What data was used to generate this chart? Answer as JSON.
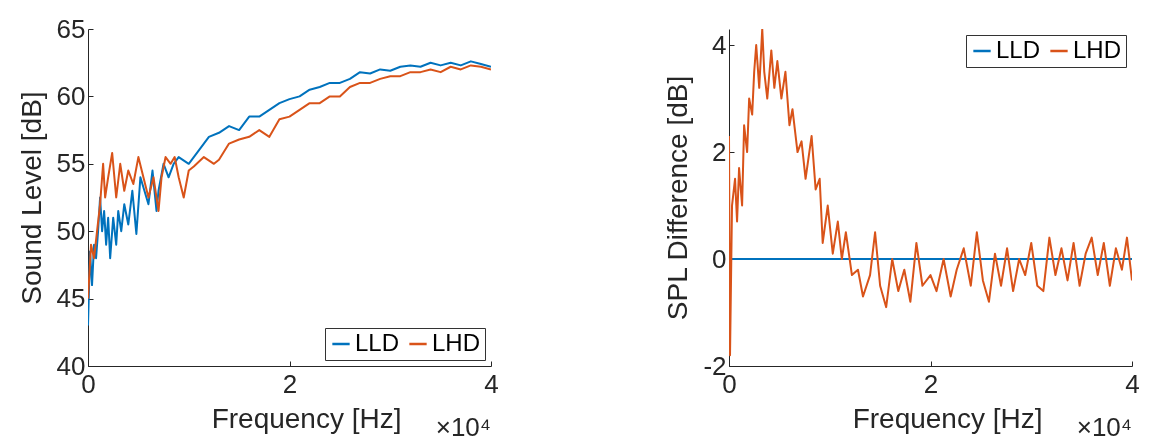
{
  "chart_data": [
    {
      "type": "line",
      "xlabel": "Frequency [Hz]",
      "ylabel": "Sound Level [dB]",
      "xlim": [
        0,
        4
      ],
      "xticks": [
        0,
        2,
        4
      ],
      "ylim": [
        40,
        65
      ],
      "yticks": [
        40,
        45,
        50,
        55,
        60,
        65
      ],
      "grid": false,
      "legend": "bottom right",
      "annotations": [
        "×10⁴"
      ],
      "series": [
        {
          "name": "LLD",
          "color": "#0072bd",
          "x": [
            0,
            0.02,
            0.04,
            0.06,
            0.08,
            0.1,
            0.12,
            0.14,
            0.16,
            0.18,
            0.2,
            0.22,
            0.25,
            0.28,
            0.3,
            0.33,
            0.36,
            0.4,
            0.44,
            0.48,
            0.52,
            0.56,
            0.6,
            0.64,
            0.68,
            0.7,
            0.75,
            0.8,
            0.85,
            0.9,
            1.0,
            1.1,
            1.2,
            1.3,
            1.4,
            1.5,
            1.6,
            1.7,
            1.8,
            1.9,
            2.0,
            2.1,
            2.2,
            2.3,
            2.4,
            2.5,
            2.6,
            2.7,
            2.8,
            2.9,
            3.0,
            3.1,
            3.2,
            3.3,
            3.4,
            3.5,
            3.6,
            3.7,
            3.8,
            3.9,
            4.0
          ],
          "values": [
            43,
            48.5,
            46,
            49,
            48,
            50,
            52.5,
            50,
            51.5,
            49,
            51,
            48,
            51,
            49,
            51.5,
            50,
            52,
            50.5,
            53,
            49.8,
            54,
            53,
            52,
            54.5,
            51.5,
            53,
            55,
            54,
            55,
            55.5,
            55,
            56,
            57,
            57.3,
            57.8,
            57.5,
            58.5,
            58.5,
            59,
            59.5,
            59.8,
            60,
            60.5,
            60.7,
            61,
            61,
            61.3,
            61.8,
            61.7,
            62,
            61.9,
            62.2,
            62.3,
            62.2,
            62.5,
            62.3,
            62.5,
            62.3,
            62.6,
            62.4,
            62.2
          ]
        },
        {
          "name": "LHD",
          "color": "#d95319",
          "x": [
            0,
            0.03,
            0.06,
            0.09,
            0.12,
            0.15,
            0.17,
            0.2,
            0.24,
            0.28,
            0.32,
            0.36,
            0.4,
            0.45,
            0.5,
            0.55,
            0.6,
            0.65,
            0.7,
            0.73,
            0.77,
            0.82,
            0.86,
            0.9,
            0.95,
            1.0,
            1.05,
            1.15,
            1.25,
            1.3,
            1.4,
            1.5,
            1.6,
            1.7,
            1.8,
            1.9,
            2.0,
            2.1,
            2.2,
            2.3,
            2.4,
            2.5,
            2.6,
            2.7,
            2.8,
            2.9,
            3.0,
            3.1,
            3.2,
            3.3,
            3.4,
            3.5,
            3.6,
            3.7,
            3.8,
            3.9,
            4.0
          ],
          "values": [
            45,
            49,
            48,
            50,
            52,
            55,
            52.5,
            54,
            55.8,
            52.5,
            55,
            53,
            54.5,
            53.5,
            55.5,
            54,
            52.5,
            54,
            51.5,
            54,
            55.5,
            55,
            55.5,
            54,
            52.5,
            54.5,
            54.8,
            55.5,
            55,
            55.3,
            56.5,
            56.8,
            57,
            57.5,
            57,
            58.3,
            58.5,
            59,
            59.5,
            59.5,
            60,
            60,
            60.7,
            61,
            61,
            61.3,
            61.5,
            61.5,
            61.8,
            61.8,
            62,
            61.8,
            62.2,
            62,
            62.3,
            62.2,
            62
          ]
        }
      ]
    },
    {
      "type": "line",
      "xlabel": "Frequency [Hz]",
      "ylabel": "SPL Difference [dB]",
      "xlim": [
        0,
        4
      ],
      "xticks": [
        0,
        2,
        4
      ],
      "ylim": [
        -2,
        4.3
      ],
      "yticks": [
        -2,
        0,
        2,
        4
      ],
      "grid": false,
      "legend": "top right",
      "annotations": [
        "×10⁴"
      ],
      "series": [
        {
          "name": "LLD",
          "color": "#0072bd",
          "x": [
            0,
            4
          ],
          "values": [
            0,
            0
          ]
        },
        {
          "name": "LHD",
          "color": "#d95319",
          "x": [
            0,
            0.01,
            0.03,
            0.06,
            0.08,
            0.1,
            0.13,
            0.15,
            0.18,
            0.2,
            0.23,
            0.25,
            0.27,
            0.3,
            0.33,
            0.35,
            0.38,
            0.42,
            0.45,
            0.48,
            0.52,
            0.56,
            0.6,
            0.63,
            0.68,
            0.72,
            0.76,
            0.82,
            0.86,
            0.9,
            0.93,
            0.98,
            1.03,
            1.08,
            1.12,
            1.16,
            1.22,
            1.28,
            1.33,
            1.4,
            1.45,
            1.5,
            1.56,
            1.62,
            1.68,
            1.74,
            1.8,
            1.86,
            1.92,
            2.0,
            2.06,
            2.13,
            2.2,
            2.26,
            2.33,
            2.4,
            2.46,
            2.52,
            2.58,
            2.64,
            2.7,
            2.76,
            2.82,
            2.88,
            2.94,
            3.0,
            3.06,
            3.12,
            3.18,
            3.24,
            3.3,
            3.36,
            3.42,
            3.48,
            3.54,
            3.6,
            3.66,
            3.72,
            3.78,
            3.84,
            3.9,
            3.95,
            4.0
          ],
          "values": [
            2.3,
            -1.8,
            1.0,
            1.5,
            0.7,
            1.7,
            1.0,
            2.5,
            2.0,
            3.0,
            2.7,
            3.5,
            4.0,
            3.2,
            4.3,
            3.5,
            3.0,
            3.9,
            3.2,
            3.7,
            3.0,
            3.5,
            2.5,
            2.8,
            2.0,
            2.2,
            1.5,
            2.3,
            1.3,
            1.5,
            0.3,
            1.0,
            0.1,
            0.7,
            0.0,
            0.5,
            -0.3,
            -0.2,
            -0.7,
            -0.3,
            0.5,
            -0.5,
            -0.9,
            0.0,
            -0.6,
            -0.2,
            -0.8,
            0.3,
            -0.5,
            -0.3,
            -0.6,
            0.0,
            -0.7,
            -0.2,
            0.2,
            -0.5,
            0.5,
            -0.4,
            -0.8,
            0.1,
            -0.5,
            0.2,
            -0.6,
            0.0,
            -0.3,
            0.3,
            -0.5,
            -0.6,
            0.4,
            -0.3,
            0.2,
            -0.4,
            0.3,
            -0.5,
            0.1,
            0.4,
            -0.3,
            0.3,
            -0.5,
            0.2,
            -0.2,
            0.4,
            -0.4
          ]
        }
      ]
    }
  ]
}
